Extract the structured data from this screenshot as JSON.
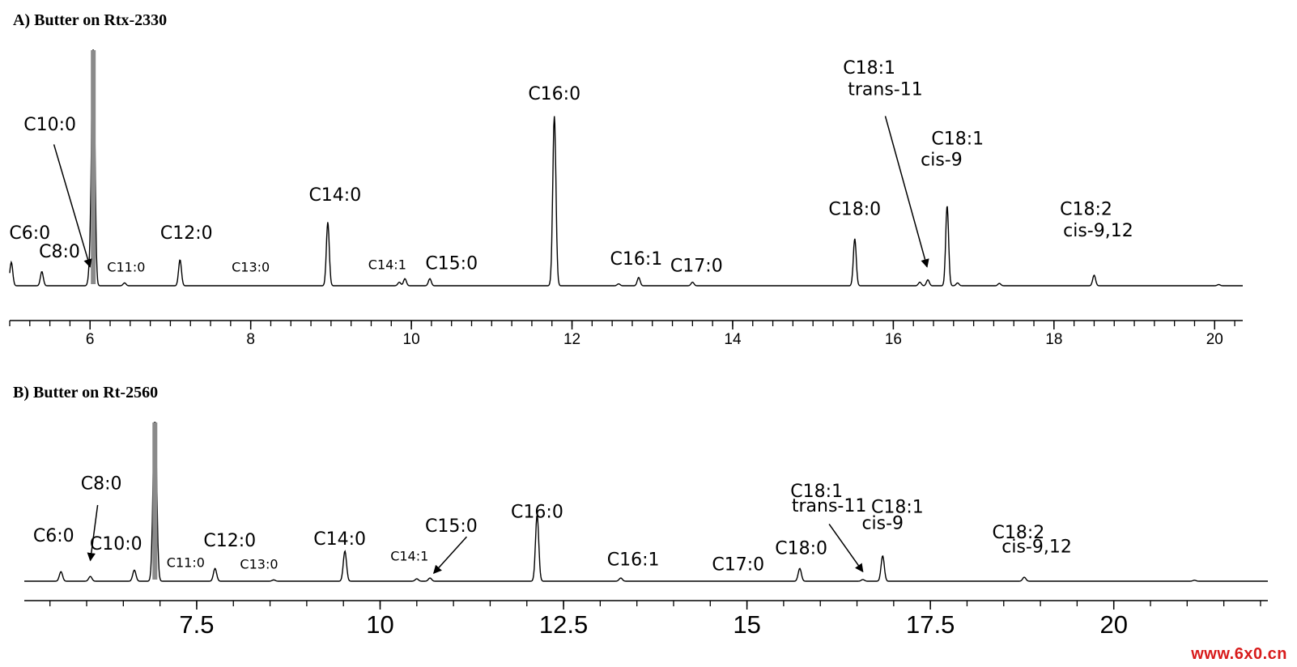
{
  "chart_data": [
    {
      "type": "line",
      "title": "A) Butter on Rtx-2330",
      "xlabel": "",
      "ylabel": "",
      "xlim": [
        5.0,
        20.35
      ],
      "xticks": [
        6,
        8,
        10,
        12,
        14,
        16,
        18,
        20
      ],
      "tick_labels": [
        "6",
        "8",
        "10",
        "12",
        "14",
        "16",
        "18",
        "20"
      ],
      "minor_step": 0.25,
      "baseline": 0.0,
      "peaks": [
        {
          "rt": 5.02,
          "h": 0.1
        },
        {
          "rt": 5.4,
          "h": 0.06
        },
        {
          "rt": 6.0,
          "h": 0.08
        },
        {
          "rt": 6.04,
          "h": 1.1
        },
        {
          "rt": 6.43,
          "h": 0.012
        },
        {
          "rt": 7.12,
          "h": 0.11
        },
        {
          "rt": 8.96,
          "h": 0.27
        },
        {
          "rt": 9.85,
          "h": 0.015
        },
        {
          "rt": 9.92,
          "h": 0.03
        },
        {
          "rt": 10.23,
          "h": 0.03
        },
        {
          "rt": 11.78,
          "h": 0.72
        },
        {
          "rt": 12.58,
          "h": 0.008
        },
        {
          "rt": 12.83,
          "h": 0.035
        },
        {
          "rt": 13.5,
          "h": 0.015
        },
        {
          "rt": 15.52,
          "h": 0.2
        },
        {
          "rt": 16.33,
          "h": 0.015
        },
        {
          "rt": 16.43,
          "h": 0.025
        },
        {
          "rt": 16.67,
          "h": 0.34
        },
        {
          "rt": 16.8,
          "h": 0.012
        },
        {
          "rt": 17.32,
          "h": 0.01
        },
        {
          "rt": 18.5,
          "h": 0.045
        },
        {
          "rt": 20.05,
          "h": 0.005
        }
      ],
      "labels": [
        {
          "text": "C6:0",
          "rt": 5.25,
          "h": 0.2,
          "size": "large"
        },
        {
          "text": "C8:0",
          "rt": 5.62,
          "h": 0.12,
          "size": "large"
        },
        {
          "text": "C10:0",
          "rt": 5.5,
          "h": 0.66,
          "size": "large"
        },
        {
          "text": "C11:0",
          "rt": 6.45,
          "h": 0.06,
          "size": "small"
        },
        {
          "text": "C12:0",
          "rt": 7.2,
          "h": 0.2,
          "size": "large"
        },
        {
          "text": "C13:0",
          "rt": 8.0,
          "h": 0.06,
          "size": "small"
        },
        {
          "text": "C14:0",
          "rt": 9.05,
          "h": 0.36,
          "size": "large"
        },
        {
          "text": "C14:1",
          "rt": 9.7,
          "h": 0.07,
          "size": "small"
        },
        {
          "text": "C15:0",
          "rt": 10.5,
          "h": 0.07,
          "size": "large"
        },
        {
          "text": "C16:0",
          "rt": 11.78,
          "h": 0.79,
          "size": "large"
        },
        {
          "text": "C16:1",
          "rt": 12.8,
          "h": 0.09,
          "size": "large"
        },
        {
          "text": "C17:0",
          "rt": 13.55,
          "h": 0.06,
          "size": "large"
        },
        {
          "text": "C18:0",
          "rt": 15.52,
          "h": 0.3,
          "size": "large"
        },
        {
          "text": "C18:1",
          "rt": 15.7,
          "h": 0.9,
          "size": "large"
        },
        {
          "text": "trans-11",
          "rt": 15.9,
          "h": 0.81,
          "size": "large"
        },
        {
          "text": "C18:1",
          "rt": 16.8,
          "h": 0.6,
          "size": "large"
        },
        {
          "text": "cis-9",
          "rt": 16.6,
          "h": 0.51,
          "size": "large"
        },
        {
          "text": "C18:2",
          "rt": 18.4,
          "h": 0.3,
          "size": "large"
        },
        {
          "text": "cis-9,12",
          "rt": 18.55,
          "h": 0.21,
          "size": "large"
        }
      ],
      "arrows": [
        {
          "from_rt": 5.55,
          "from_h": 0.6,
          "to_rt": 6.0,
          "to_h": 0.08
        },
        {
          "from_rt": 15.9,
          "from_h": 0.72,
          "to_rt": 16.42,
          "to_h": 0.08
        }
      ]
    },
    {
      "type": "line",
      "title": "B) Butter on Rt-2560",
      "xlabel": "",
      "ylabel": "",
      "xlim": [
        5.15,
        22.1
      ],
      "xticks": [
        7.5,
        10,
        12.5,
        15,
        17.5,
        20
      ],
      "tick_labels": [
        "7.5",
        "10",
        "12.5",
        "15",
        "17.5",
        "20"
      ],
      "minor_step": 0.5,
      "baseline": 0.0,
      "peaks": [
        {
          "rt": 5.65,
          "h": 0.06
        },
        {
          "rt": 6.05,
          "h": 0.03
        },
        {
          "rt": 6.65,
          "h": 0.07
        },
        {
          "rt": 6.93,
          "h": 1.1
        },
        {
          "rt": 7.75,
          "h": 0.08
        },
        {
          "rt": 8.55,
          "h": 0.008
        },
        {
          "rt": 9.52,
          "h": 0.19
        },
        {
          "rt": 10.5,
          "h": 0.015
        },
        {
          "rt": 10.68,
          "h": 0.02
        },
        {
          "rt": 12.14,
          "h": 0.42
        },
        {
          "rt": 13.28,
          "h": 0.02
        },
        {
          "rt": 15.72,
          "h": 0.08
        },
        {
          "rt": 16.58,
          "h": 0.01
        },
        {
          "rt": 16.85,
          "h": 0.16
        },
        {
          "rt": 18.78,
          "h": 0.025
        },
        {
          "rt": 21.1,
          "h": 0.006
        }
      ],
      "labels": [
        {
          "text": "C6:0",
          "rt": 5.55,
          "h": 0.25,
          "size": "large"
        },
        {
          "text": "C8:0",
          "rt": 6.2,
          "h": 0.58,
          "size": "large"
        },
        {
          "text": "C10:0",
          "rt": 6.4,
          "h": 0.2,
          "size": "large"
        },
        {
          "text": "C11:0",
          "rt": 7.35,
          "h": 0.09,
          "size": "small"
        },
        {
          "text": "C12:0",
          "rt": 7.95,
          "h": 0.22,
          "size": "large"
        },
        {
          "text": "C13:0",
          "rt": 8.35,
          "h": 0.08,
          "size": "small"
        },
        {
          "text": "C14:0",
          "rt": 9.45,
          "h": 0.23,
          "size": "large"
        },
        {
          "text": "C14:1",
          "rt": 10.4,
          "h": 0.13,
          "size": "small"
        },
        {
          "text": "C15:0",
          "rt": 10.97,
          "h": 0.31,
          "size": "large"
        },
        {
          "text": "C16:0",
          "rt": 12.14,
          "h": 0.4,
          "size": "large"
        },
        {
          "text": "C16:1",
          "rt": 13.45,
          "h": 0.1,
          "size": "large"
        },
        {
          "text": "C17:0",
          "rt": 14.88,
          "h": 0.07,
          "size": "large"
        },
        {
          "text": "C18:0",
          "rt": 15.74,
          "h": 0.17,
          "size": "large"
        },
        {
          "text": "C18:1",
          "rt": 15.95,
          "h": 0.53,
          "size": "large"
        },
        {
          "text": "trans-11",
          "rt": 16.12,
          "h": 0.44,
          "size": "large"
        },
        {
          "text": "C18:1",
          "rt": 17.05,
          "h": 0.43,
          "size": "large"
        },
        {
          "text": "cis-9",
          "rt": 16.85,
          "h": 0.33,
          "size": "large"
        },
        {
          "text": "C18:2",
          "rt": 18.7,
          "h": 0.27,
          "size": "large"
        },
        {
          "text": "cis-9,12",
          "rt": 18.95,
          "h": 0.18,
          "size": "large"
        }
      ],
      "arrows": [
        {
          "from_rt": 6.15,
          "from_h": 0.48,
          "to_rt": 6.05,
          "to_h": 0.13
        },
        {
          "from_rt": 11.18,
          "from_h": 0.28,
          "to_rt": 10.73,
          "to_h": 0.05
        },
        {
          "from_rt": 16.12,
          "from_h": 0.36,
          "to_rt": 16.58,
          "to_h": 0.06
        }
      ]
    }
  ],
  "watermark": "www.6x0.cn"
}
